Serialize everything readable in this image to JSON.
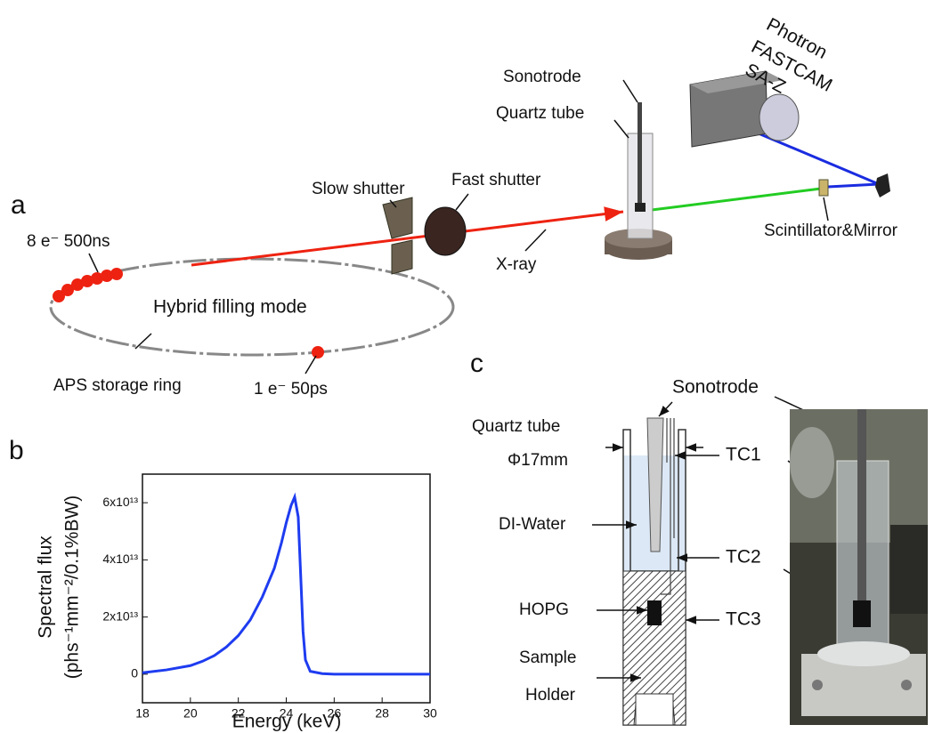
{
  "panel_a": {
    "label": "a",
    "sonotrode": "Sonotrode",
    "quartz_tube": "Quartz tube",
    "camera": [
      "Photron",
      "FASTCAM",
      "SA-Z"
    ],
    "slow_shutter": "Slow shutter",
    "fast_shutter": "Fast shutter",
    "scintillator": "Scintillator&Mirror",
    "xray": "X-ray",
    "bunch_train": "8 e⁻ 500ns",
    "mode": "Hybrid filling mode",
    "ring": "APS storage ring",
    "single_bunch": "1 e⁻  50ps"
  },
  "panel_b": {
    "label": "b"
  },
  "chart_data": {
    "type": "line",
    "xlabel": "Energy (keV)",
    "ylabel": [
      "Spectral flux",
      "(phs⁻¹mm⁻²/0.1%BW)"
    ],
    "x": [
      18,
      19,
      20,
      20.5,
      21,
      21.5,
      22,
      22.5,
      23,
      23.5,
      23.8,
      24,
      24.2,
      24.35,
      24.5,
      24.6,
      24.7,
      24.8,
      25,
      25.5,
      26,
      30
    ],
    "values": [
      500000000000.0,
      1500000000000.0,
      3000000000000.0,
      4500000000000.0,
      6500000000000.0,
      9500000000000.0,
      13500000000000.0,
      19000000000000.0,
      27000000000000.0,
      37000000000000.0,
      46000000000000.0,
      53000000000000.0,
      59000000000000.0,
      62000000000000.0,
      55000000000000.0,
      35000000000000.0,
      15000000000000.0,
      5000000000000.0,
      1000000000000.0,
      200000000000.0,
      0,
      0
    ],
    "color": "#1e3cf0",
    "xlim": [
      18,
      30
    ],
    "ylim": [
      -10000000000000.0,
      70000000000000.0
    ],
    "xticks": [
      18,
      20,
      22,
      24,
      26,
      28,
      30
    ],
    "yticks": [
      0,
      {
        "value": 20000000000000.0,
        "label": "2x10¹³"
      },
      {
        "value": 40000000000000.0,
        "label": "4x10¹³"
      },
      {
        "value": 60000000000000.0,
        "label": "6x10¹³"
      }
    ]
  },
  "panel_c": {
    "label": "c",
    "quartz_tube": "Quartz tube",
    "diameter": "Φ17mm",
    "water": "DI-Water",
    "hopg": "HOPG",
    "holder": [
      "Sample",
      "Holder"
    ],
    "sonotrode": "Sonotrode",
    "tc1": "TC1",
    "tc2": "TC2",
    "tc3": "TC3"
  }
}
